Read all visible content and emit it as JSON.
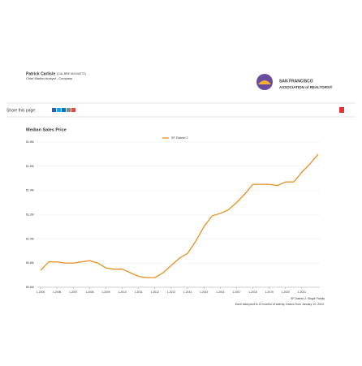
{
  "page": {
    "author": "Patrick Carlisle",
    "license": "(CAL BRE #01040772)",
    "role": "Chief Market Analyst - Compass",
    "logo_line1": "SAN FRANCISCO",
    "logo_line2": "ASSOCIATION of REALTORS®",
    "share": "Share this page:"
  },
  "chart_data": {
    "type": "line",
    "title": "Median Sales Price",
    "categories": [
      "1-2005",
      null,
      "1-2006",
      null,
      "1-2007",
      null,
      "1-2008",
      null,
      "1-2009",
      null,
      "1-2010",
      null,
      "1-2011",
      null,
      "1-2012",
      null,
      "1-2013",
      null,
      "1-2014",
      null,
      "1-2015",
      null,
      "1-2016",
      null,
      "1-2017",
      null,
      "1-2018",
      null,
      "1-2019",
      null,
      "1-2020",
      null,
      "1-2021",
      null,
      null
    ],
    "series": [
      {
        "name": "SF District 2",
        "color": "#e8962e",
        "values": [
          0.74,
          0.81,
          0.81,
          0.8,
          0.8,
          0.81,
          0.82,
          0.8,
          0.76,
          0.75,
          0.75,
          0.72,
          0.69,
          0.68,
          0.68,
          0.72,
          0.78,
          0.84,
          0.88,
          0.98,
          1.1,
          1.19,
          1.21,
          1.24,
          1.3,
          1.37,
          1.45,
          1.45,
          1.45,
          1.44,
          1.47,
          1.47,
          1.55,
          1.62,
          1.7
        ]
      }
    ],
    "ylim": [
      0.6,
      1.8
    ],
    "yticks": [
      {
        "value": 0.6,
        "label": "$0.6M"
      },
      {
        "value": 0.8,
        "label": "$0.8M"
      },
      {
        "value": 1.0,
        "label": "$1.0M"
      },
      {
        "value": 1.2,
        "label": "$1.2M"
      },
      {
        "value": 1.4,
        "label": "$1.4M"
      },
      {
        "value": 1.6,
        "label": "$1.6M"
      },
      {
        "value": 1.8,
        "label": "$1.8M"
      }
    ],
    "grid": true,
    "notes": [
      "SF District 2: Single Family",
      "Each data point is 12 months of activity. Data is from January 10, 2022."
    ]
  }
}
